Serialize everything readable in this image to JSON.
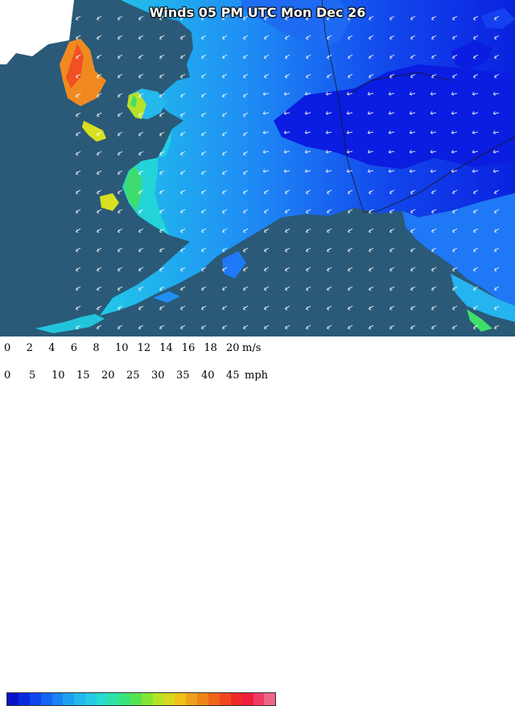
{
  "map": {
    "title": "Winds 05 PM UTC Mon Dec 26",
    "colors": {
      "ocean": "#2a5a78",
      "land_outside": "#ffffff",
      "wind_darkest": "#0a1de0",
      "wind_dark": "#1540f0",
      "wind_mid": "#1f78f5",
      "wind_light": "#25b4f0",
      "wind_cyan": "#22d4e0",
      "wind_green": "#3ee06a",
      "wind_yellow": "#d8e020",
      "wind_orange": "#f09018",
      "wind_red": "#f05020",
      "borders": "#1a1a1a",
      "arrows": "#ffffff"
    }
  },
  "legend": {
    "ms_unit": "m/s",
    "mph_unit": "mph",
    "ms_ticks": [
      "0",
      "2",
      "4",
      "6",
      "8",
      "10",
      "12",
      "14",
      "16",
      "18",
      "20"
    ],
    "mph_ticks": [
      "0",
      "5",
      "10",
      "15",
      "20",
      "25",
      "30",
      "35",
      "40",
      "45"
    ],
    "colorbar": [
      "#0a12c8",
      "#0a2ae0",
      "#0f46f0",
      "#1464f5",
      "#1982f5",
      "#1ea0f0",
      "#22b8ec",
      "#24cce6",
      "#28dcd0",
      "#2ee2a8",
      "#3ae47c",
      "#56e44e",
      "#86e432",
      "#b4e424",
      "#d8d81e",
      "#f0c018",
      "#f0a01a",
      "#f08418",
      "#f06418",
      "#f04820",
      "#f02a28",
      "#f01e3c",
      "#f03c64",
      "#f06488"
    ]
  }
}
